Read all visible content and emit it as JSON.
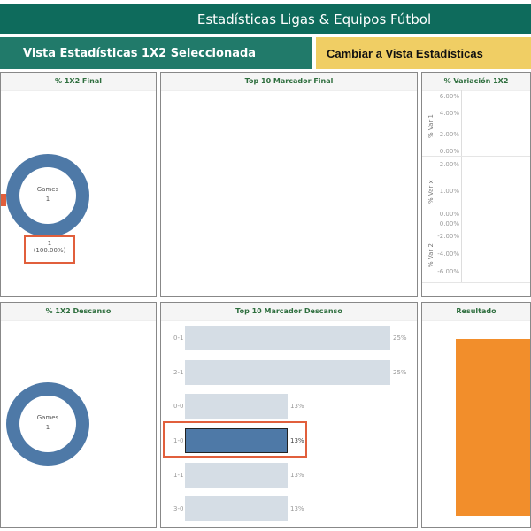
{
  "header": {
    "title": "Estadísticas Ligas & Equipos Fútbol"
  },
  "buttons": {
    "selected": "Vista Estadísticas 1X2 Seleccionada",
    "switch": "Cambiar a Vista Estadísticas"
  },
  "panels": {
    "final_1x2": {
      "title": "% 1X2 Final",
      "center_label": "Games",
      "center_value": "1",
      "tooltip_value": "1",
      "tooltip_pct": "(100.00%)"
    },
    "top10_final": {
      "title": "Top 10 Marcador Final"
    },
    "variacion": {
      "title": "% Variación 1X2",
      "sections": [
        {
          "label": "% Var 1",
          "ticks": [
            "6.00%",
            "4.00%",
            "2.00%",
            "0.00%"
          ]
        },
        {
          "label": "% Var x",
          "ticks": [
            "2.00%",
            "1.00%",
            "0.00%"
          ]
        },
        {
          "label": "% Var 2",
          "ticks": [
            "0.00%",
            "-2.00%",
            "-4.00%",
            "-6.00%"
          ]
        }
      ]
    },
    "descanso_1x2": {
      "title": "% 1X2 Descanso",
      "center_label": "Games",
      "center_value": "1"
    },
    "top10_descanso": {
      "title": "Top 10 Marcador Descanso",
      "rows": [
        {
          "score": "0-1",
          "pct": "25%",
          "value": 25
        },
        {
          "score": "2-1",
          "pct": "25%",
          "value": 25
        },
        {
          "score": "0-0",
          "pct": "13%",
          "value": 12.5
        },
        {
          "score": "1-0",
          "pct": "13%",
          "value": 12.5,
          "selected": true
        },
        {
          "score": "1-1",
          "pct": "13%",
          "value": 12.5
        },
        {
          "score": "3-0",
          "pct": "13%",
          "value": 12.5
        }
      ]
    },
    "resultado": {
      "title": "Resultado"
    }
  },
  "colors": {
    "header": "#0e6b5c",
    "selected_btn": "#217a6a",
    "switch_btn": "#f0ce64",
    "donut": "#4e79a7",
    "highlight": "#e15f3c",
    "orange": "#f28e2b",
    "bar": "#d5dde5"
  }
}
